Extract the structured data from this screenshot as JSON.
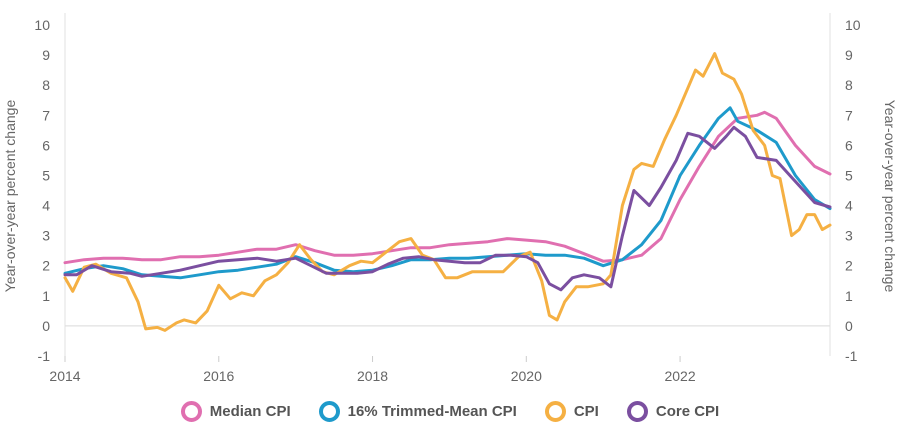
{
  "chart_data": {
    "type": "line",
    "ylabel_left": "Year-over-year percent change",
    "ylabel_right": "Year-over-year percent change",
    "ylim": [
      -1,
      10
    ],
    "xlim": [
      2014.0,
      2023.95
    ],
    "y_ticks": [
      "-1",
      "0",
      "1",
      "2",
      "3",
      "4",
      "5",
      "6",
      "7",
      "8",
      "9",
      "10"
    ],
    "x_ticks": [
      "2014",
      "2016",
      "2018",
      "2020",
      "2022"
    ],
    "grid": "horizontal-zero-line-only",
    "legend_position": "bottom",
    "series": [
      {
        "name": "Median CPI",
        "color": "#E06FB0",
        "points": [
          [
            2014.0,
            2.1
          ],
          [
            2014.25,
            2.2
          ],
          [
            2014.5,
            2.25
          ],
          [
            2014.75,
            2.25
          ],
          [
            2015.0,
            2.2
          ],
          [
            2015.25,
            2.2
          ],
          [
            2015.5,
            2.3
          ],
          [
            2015.75,
            2.3
          ],
          [
            2016.0,
            2.35
          ],
          [
            2016.25,
            2.45
          ],
          [
            2016.5,
            2.55
          ],
          [
            2016.75,
            2.55
          ],
          [
            2017.0,
            2.7
          ],
          [
            2017.25,
            2.5
          ],
          [
            2017.5,
            2.35
          ],
          [
            2017.75,
            2.35
          ],
          [
            2018.0,
            2.4
          ],
          [
            2018.25,
            2.5
          ],
          [
            2018.5,
            2.6
          ],
          [
            2018.75,
            2.6
          ],
          [
            2019.0,
            2.7
          ],
          [
            2019.25,
            2.75
          ],
          [
            2019.5,
            2.8
          ],
          [
            2019.75,
            2.9
          ],
          [
            2020.0,
            2.85
          ],
          [
            2020.25,
            2.8
          ],
          [
            2020.5,
            2.65
          ],
          [
            2020.75,
            2.4
          ],
          [
            2021.0,
            2.15
          ],
          [
            2021.25,
            2.2
          ],
          [
            2021.5,
            2.35
          ],
          [
            2021.75,
            2.9
          ],
          [
            2022.0,
            4.2
          ],
          [
            2022.25,
            5.3
          ],
          [
            2022.5,
            6.3
          ],
          [
            2022.75,
            6.9
          ],
          [
            2023.0,
            7.0
          ],
          [
            2023.1,
            7.1
          ],
          [
            2023.25,
            6.9
          ],
          [
            2023.5,
            6.0
          ],
          [
            2023.75,
            5.3
          ],
          [
            2023.95,
            5.05
          ]
        ]
      },
      {
        "name": "16% Trimmed-Mean CPI",
        "color": "#1E9ACB",
        "points": [
          [
            2014.0,
            1.75
          ],
          [
            2014.25,
            1.9
          ],
          [
            2014.5,
            2.0
          ],
          [
            2014.75,
            1.9
          ],
          [
            2015.0,
            1.7
          ],
          [
            2015.25,
            1.65
          ],
          [
            2015.5,
            1.6
          ],
          [
            2015.75,
            1.7
          ],
          [
            2016.0,
            1.8
          ],
          [
            2016.25,
            1.85
          ],
          [
            2016.5,
            1.95
          ],
          [
            2016.75,
            2.05
          ],
          [
            2017.0,
            2.3
          ],
          [
            2017.25,
            2.1
          ],
          [
            2017.5,
            1.85
          ],
          [
            2017.75,
            1.8
          ],
          [
            2018.0,
            1.85
          ],
          [
            2018.25,
            2.0
          ],
          [
            2018.5,
            2.2
          ],
          [
            2018.75,
            2.2
          ],
          [
            2019.0,
            2.25
          ],
          [
            2019.25,
            2.25
          ],
          [
            2019.5,
            2.3
          ],
          [
            2019.75,
            2.35
          ],
          [
            2020.0,
            2.4
          ],
          [
            2020.25,
            2.35
          ],
          [
            2020.5,
            2.35
          ],
          [
            2020.75,
            2.25
          ],
          [
            2021.0,
            2.0
          ],
          [
            2021.25,
            2.2
          ],
          [
            2021.5,
            2.7
          ],
          [
            2021.75,
            3.5
          ],
          [
            2022.0,
            5.0
          ],
          [
            2022.25,
            6.0
          ],
          [
            2022.5,
            6.9
          ],
          [
            2022.65,
            7.25
          ],
          [
            2022.75,
            6.8
          ],
          [
            2023.0,
            6.5
          ],
          [
            2023.25,
            6.1
          ],
          [
            2023.5,
            5.0
          ],
          [
            2023.75,
            4.2
          ],
          [
            2023.95,
            3.9
          ]
        ]
      },
      {
        "name": "CPI",
        "color": "#F5B043",
        "points": [
          [
            2014.0,
            1.6
          ],
          [
            2014.1,
            1.15
          ],
          [
            2014.25,
            1.95
          ],
          [
            2014.4,
            2.05
          ],
          [
            2014.6,
            1.75
          ],
          [
            2014.8,
            1.6
          ],
          [
            2014.95,
            0.8
          ],
          [
            2015.05,
            -0.1
          ],
          [
            2015.2,
            -0.05
          ],
          [
            2015.3,
            -0.15
          ],
          [
            2015.45,
            0.1
          ],
          [
            2015.55,
            0.2
          ],
          [
            2015.7,
            0.1
          ],
          [
            2015.85,
            0.5
          ],
          [
            2016.0,
            1.35
          ],
          [
            2016.15,
            0.9
          ],
          [
            2016.3,
            1.1
          ],
          [
            2016.45,
            1.0
          ],
          [
            2016.6,
            1.5
          ],
          [
            2016.75,
            1.7
          ],
          [
            2016.9,
            2.1
          ],
          [
            2017.05,
            2.7
          ],
          [
            2017.2,
            2.2
          ],
          [
            2017.35,
            1.8
          ],
          [
            2017.5,
            1.7
          ],
          [
            2017.7,
            2.0
          ],
          [
            2017.85,
            2.15
          ],
          [
            2018.0,
            2.1
          ],
          [
            2018.2,
            2.5
          ],
          [
            2018.35,
            2.8
          ],
          [
            2018.5,
            2.9
          ],
          [
            2018.65,
            2.35
          ],
          [
            2018.8,
            2.2
          ],
          [
            2018.95,
            1.6
          ],
          [
            2019.1,
            1.6
          ],
          [
            2019.3,
            1.8
          ],
          [
            2019.5,
            1.8
          ],
          [
            2019.7,
            1.8
          ],
          [
            2019.9,
            2.3
          ],
          [
            2020.05,
            2.45
          ],
          [
            2020.2,
            1.5
          ],
          [
            2020.3,
            0.35
          ],
          [
            2020.4,
            0.2
          ],
          [
            2020.5,
            0.8
          ],
          [
            2020.65,
            1.3
          ],
          [
            2020.8,
            1.3
          ],
          [
            2021.0,
            1.4
          ],
          [
            2021.1,
            1.7
          ],
          [
            2021.25,
            4.0
          ],
          [
            2021.4,
            5.2
          ],
          [
            2021.5,
            5.4
          ],
          [
            2021.65,
            5.3
          ],
          [
            2021.8,
            6.2
          ],
          [
            2021.95,
            7.0
          ],
          [
            2022.1,
            7.9
          ],
          [
            2022.2,
            8.5
          ],
          [
            2022.3,
            8.3
          ],
          [
            2022.45,
            9.05
          ],
          [
            2022.55,
            8.4
          ],
          [
            2022.7,
            8.2
          ],
          [
            2022.8,
            7.7
          ],
          [
            2022.95,
            6.5
          ],
          [
            2023.1,
            6.0
          ],
          [
            2023.2,
            5.0
          ],
          [
            2023.3,
            4.9
          ],
          [
            2023.45,
            3.0
          ],
          [
            2023.55,
            3.2
          ],
          [
            2023.65,
            3.7
          ],
          [
            2023.75,
            3.7
          ],
          [
            2023.85,
            3.2
          ],
          [
            2023.95,
            3.35
          ]
        ]
      },
      {
        "name": "Core CPI",
        "color": "#7B4FA0",
        "points": [
          [
            2014.0,
            1.7
          ],
          [
            2014.15,
            1.7
          ],
          [
            2014.35,
            2.0
          ],
          [
            2014.6,
            1.8
          ],
          [
            2014.85,
            1.75
          ],
          [
            2015.0,
            1.65
          ],
          [
            2015.25,
            1.75
          ],
          [
            2015.5,
            1.85
          ],
          [
            2015.75,
            2.0
          ],
          [
            2016.0,
            2.15
          ],
          [
            2016.25,
            2.2
          ],
          [
            2016.5,
            2.25
          ],
          [
            2016.75,
            2.15
          ],
          [
            2017.0,
            2.25
          ],
          [
            2017.2,
            2.0
          ],
          [
            2017.4,
            1.75
          ],
          [
            2017.6,
            1.75
          ],
          [
            2017.8,
            1.75
          ],
          [
            2018.0,
            1.8
          ],
          [
            2018.2,
            2.05
          ],
          [
            2018.4,
            2.25
          ],
          [
            2018.6,
            2.3
          ],
          [
            2018.8,
            2.2
          ],
          [
            2019.0,
            2.15
          ],
          [
            2019.2,
            2.1
          ],
          [
            2019.4,
            2.1
          ],
          [
            2019.6,
            2.35
          ],
          [
            2019.8,
            2.35
          ],
          [
            2020.0,
            2.3
          ],
          [
            2020.15,
            2.1
          ],
          [
            2020.3,
            1.4
          ],
          [
            2020.45,
            1.2
          ],
          [
            2020.6,
            1.6
          ],
          [
            2020.75,
            1.7
          ],
          [
            2020.95,
            1.6
          ],
          [
            2021.1,
            1.3
          ],
          [
            2021.25,
            3.0
          ],
          [
            2021.4,
            4.5
          ],
          [
            2021.6,
            4.0
          ],
          [
            2021.75,
            4.6
          ],
          [
            2021.95,
            5.5
          ],
          [
            2022.1,
            6.4
          ],
          [
            2022.25,
            6.3
          ],
          [
            2022.45,
            5.9
          ],
          [
            2022.6,
            6.3
          ],
          [
            2022.7,
            6.6
          ],
          [
            2022.85,
            6.3
          ],
          [
            2023.0,
            5.6
          ],
          [
            2023.25,
            5.5
          ],
          [
            2023.5,
            4.8
          ],
          [
            2023.75,
            4.1
          ],
          [
            2023.95,
            3.95
          ]
        ]
      }
    ]
  }
}
